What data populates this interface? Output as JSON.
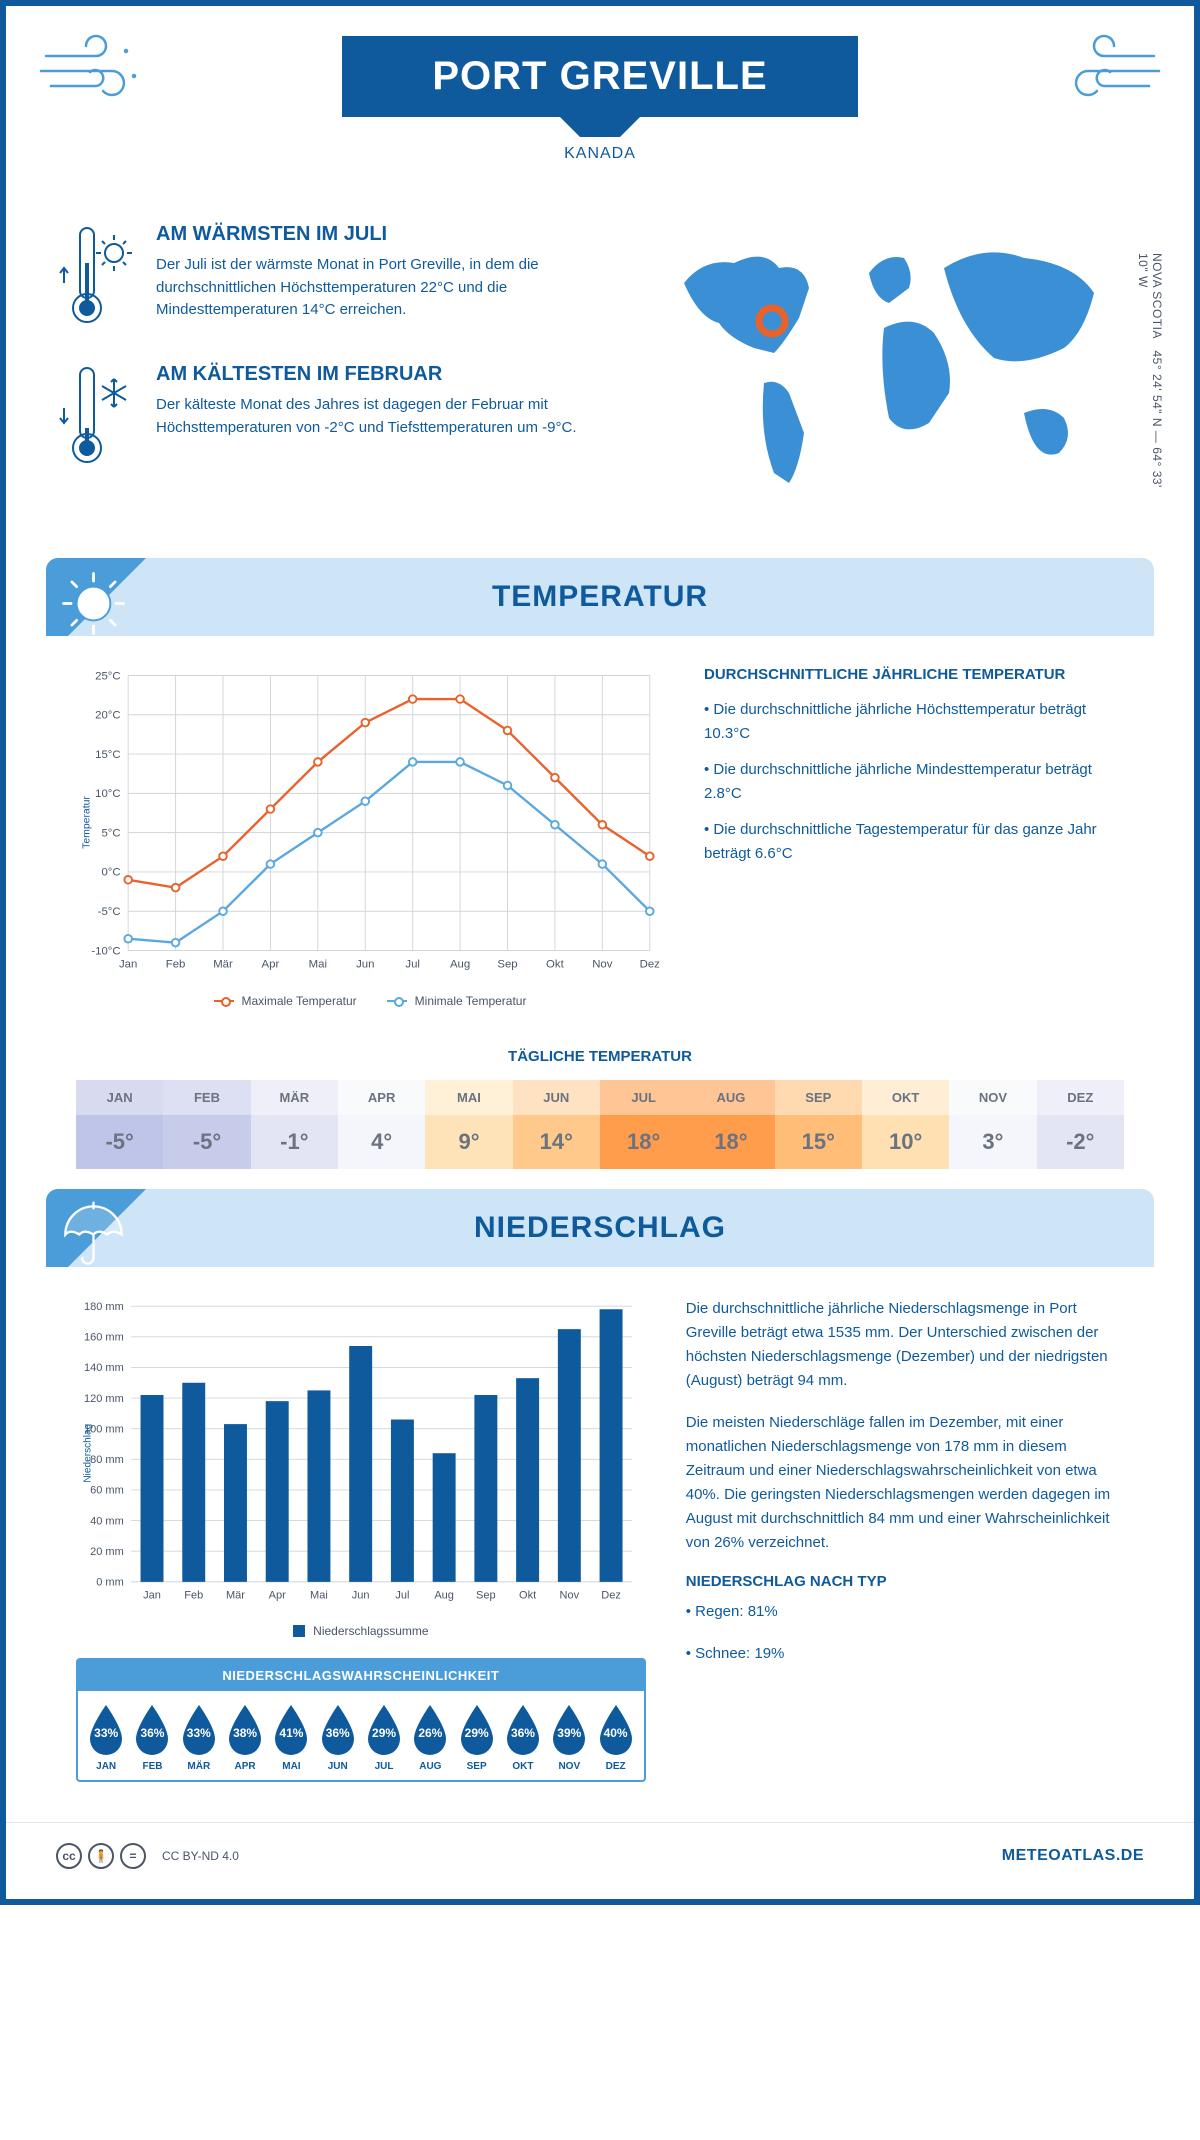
{
  "colors": {
    "primary": "#0e5a9c",
    "light_blue": "#cde5f6",
    "mid_blue": "#4a9dd8",
    "orange": "#e8622c",
    "line_blue": "#5aa8e0",
    "grid": "#d1d5db",
    "text_gray": "#4a5568"
  },
  "header": {
    "title": "PORT GREVILLE",
    "subtitle": "KANADA"
  },
  "coords": {
    "text": "45° 24' 54\" N — 64° 33' 10\" W",
    "region": "NOVA SCOTIA"
  },
  "intro": {
    "warm": {
      "title": "AM WÄRMSTEN IM JULI",
      "text": "Der Juli ist der wärmste Monat in Port Greville, in dem die durchschnittlichen Höchsttemperaturen 22°C und die Mindesttemperaturen 14°C erreichen."
    },
    "cold": {
      "title": "AM KÄLTESTEN IM FEBRUAR",
      "text": "Der kälteste Monat des Jahres ist dagegen der Februar mit Höchsttemperaturen von -2°C und Tiefsttemperaturen um -9°C."
    }
  },
  "temp_section": {
    "title": "TEMPERATUR",
    "info_title": "DURCHSCHNITTLICHE JÄHRLICHE TEMPERATUR",
    "bullet1": "• Die durchschnittliche jährliche Höchsttemperatur beträgt 10.3°C",
    "bullet2": "• Die durchschnittliche jährliche Mindesttemperatur beträgt 2.8°C",
    "bullet3": "• Die durchschnittliche Tagestemperatur für das ganze Jahr beträgt 6.6°C",
    "chart": {
      "months": [
        "Jan",
        "Feb",
        "Mär",
        "Apr",
        "Mai",
        "Jun",
        "Jul",
        "Aug",
        "Sep",
        "Okt",
        "Nov",
        "Dez"
      ],
      "max": [
        -1,
        -2,
        2,
        8,
        14,
        19,
        22,
        22,
        18,
        12,
        6,
        2
      ],
      "min": [
        -8.5,
        -9,
        -5,
        1,
        5,
        9,
        14,
        14,
        11,
        6,
        1,
        -5
      ],
      "ylim": [
        -10,
        25
      ],
      "ystep": 5,
      "ylabel": "Temperatur",
      "legend_max": "Maximale Temperatur",
      "legend_min": "Minimale Temperatur"
    }
  },
  "daily": {
    "title": "TÄGLICHE TEMPERATUR",
    "months": [
      "JAN",
      "FEB",
      "MÄR",
      "APR",
      "MAI",
      "JUN",
      "JUL",
      "AUG",
      "SEP",
      "OKT",
      "NOV",
      "DEZ"
    ],
    "values": [
      "-5°",
      "-5°",
      "-1°",
      "4°",
      "9°",
      "14°",
      "18°",
      "18°",
      "15°",
      "10°",
      "3°",
      "-2°"
    ],
    "bg": [
      "#bfc5e8",
      "#c8cceb",
      "#e3e5f4",
      "#f4f6fb",
      "#ffe3b8",
      "#ffc98b",
      "#ff9d4d",
      "#ff9d4d",
      "#ffbd78",
      "#ffe0b3",
      "#f4f6fb",
      "#e3e5f4"
    ],
    "hdr_bg": [
      "#d8dbf0",
      "#dde0f2",
      "#eeeff8",
      "#f9fafc",
      "#fff0d8",
      "#ffe2c2",
      "#ffc594",
      "#ffc594",
      "#ffd9b0",
      "#ffeed5",
      "#f9fafc",
      "#eeeff8"
    ],
    "txt": [
      "#6b7280",
      "#6b7280",
      "#6b7280",
      "#6b7280",
      "#6b7280",
      "#6b7280",
      "#6b7280",
      "#6b7280",
      "#6b7280",
      "#6b7280",
      "#6b7280",
      "#6b7280"
    ]
  },
  "precip_section": {
    "title": "NIEDERSCHLAG",
    "para1": "Die durchschnittliche jährliche Niederschlagsmenge in Port Greville beträgt etwa 1535 mm. Der Unterschied zwischen der höchsten Niederschlagsmenge (Dezember) und der niedrigsten (August) beträgt 94 mm.",
    "para2": "Die meisten Niederschläge fallen im Dezember, mit einer monatlichen Niederschlagsmenge von 178 mm in diesem Zeitraum und einer Niederschlagswahrscheinlichkeit von etwa 40%. Die geringsten Niederschlagsmengen werden dagegen im August mit durchschnittlich 84 mm und einer Wahrscheinlichkeit von 26% verzeichnet.",
    "type_title": "NIEDERSCHLAG NACH TYP",
    "type1": "• Regen: 81%",
    "type2": "• Schnee: 19%",
    "chart": {
      "months": [
        "Jan",
        "Feb",
        "Mär",
        "Apr",
        "Mai",
        "Jun",
        "Jul",
        "Aug",
        "Sep",
        "Okt",
        "Nov",
        "Dez"
      ],
      "values": [
        122,
        130,
        103,
        118,
        125,
        154,
        106,
        84,
        122,
        133,
        165,
        178
      ],
      "ylim": [
        0,
        180
      ],
      "ystep": 20,
      "ylabel": "Niederschlag",
      "legend": "Niederschlagssumme"
    },
    "prob": {
      "title": "NIEDERSCHLAGSWAHRSCHEINLICHKEIT",
      "months": [
        "JAN",
        "FEB",
        "MÄR",
        "APR",
        "MAI",
        "JUN",
        "JUL",
        "AUG",
        "SEP",
        "OKT",
        "NOV",
        "DEZ"
      ],
      "values": [
        "33%",
        "36%",
        "33%",
        "38%",
        "41%",
        "36%",
        "29%",
        "26%",
        "29%",
        "36%",
        "39%",
        "40%"
      ]
    }
  },
  "footer": {
    "license": "CC BY-ND 4.0",
    "site": "METEOATLAS.DE"
  }
}
